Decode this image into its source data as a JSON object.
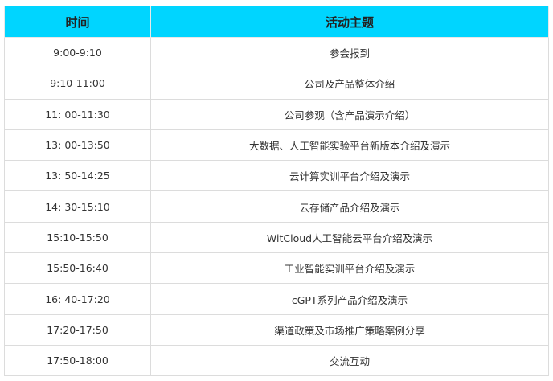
{
  "table": {
    "header_color": "#00d5ff",
    "columns": [
      "时间",
      "活动主题"
    ],
    "rows": [
      {
        "time": "9:00-9:10",
        "topic": "参会报到"
      },
      {
        "time": "9:10-11:00",
        "topic": "公司及产品整体介绍"
      },
      {
        "time": "11: 00-11:30",
        "topic": "公司参观（含产品演示介绍）"
      },
      {
        "time": "13: 00-13:50",
        "topic": "大数据、人工智能实验平台新版本介绍及演示"
      },
      {
        "time": "13: 50-14:25",
        "topic": "云计算实训平台介绍及演示"
      },
      {
        "time": "14: 30-15:10",
        "topic": "云存储产品介绍及演示"
      },
      {
        "time": "15:10-15:50",
        "topic": "WitCloud人工智能云平台介绍及演示"
      },
      {
        "time": "15:50-16:40",
        "topic": "工业智能实训平台介绍及演示"
      },
      {
        "time": "16: 40-17:20",
        "topic": "cGPT系列产品介绍及演示"
      },
      {
        "time": "17:20-17:50",
        "topic": "渠道政策及市场推广策略案例分享"
      },
      {
        "time": "17:50-18:00",
        "topic": "交流互动"
      }
    ]
  }
}
